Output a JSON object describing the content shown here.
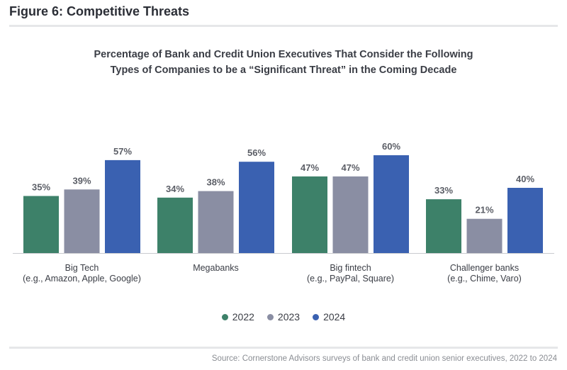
{
  "figure_title": "Figure 6: Competitive Threats",
  "source": "Source: Cornerstone Advisors surveys of bank and credit union senior executives, 2022 to 2024",
  "colors": {
    "2022": "#3d8169",
    "2023": "#8a8ea3",
    "2024": "#3a61b1"
  },
  "chart_data": {
    "type": "bar",
    "title_lines": [
      "Percentage of Bank and Credit Union Executives That Consider the Following",
      "Types of Companies to be a “Significant Threat” in the Coming Decade"
    ],
    "categories": [
      [
        "Big Tech",
        "(e.g., Amazon, Apple, Google)"
      ],
      [
        "Megabanks"
      ],
      [
        "Big fintech",
        "(e.g., PayPal, Square)"
      ],
      [
        "Challenger banks",
        "(e.g., Chime, Varo)"
      ]
    ],
    "series": [
      {
        "name": "2022",
        "values": [
          35,
          34,
          47,
          33
        ]
      },
      {
        "name": "2023",
        "values": [
          39,
          38,
          47,
          21
        ]
      },
      {
        "name": "2024",
        "values": [
          57,
          56,
          60,
          40
        ]
      }
    ],
    "value_suffix": "%",
    "ylim": [
      0,
      60
    ],
    "xlabel": "",
    "ylabel": "",
    "legend_position": "bottom-center"
  }
}
